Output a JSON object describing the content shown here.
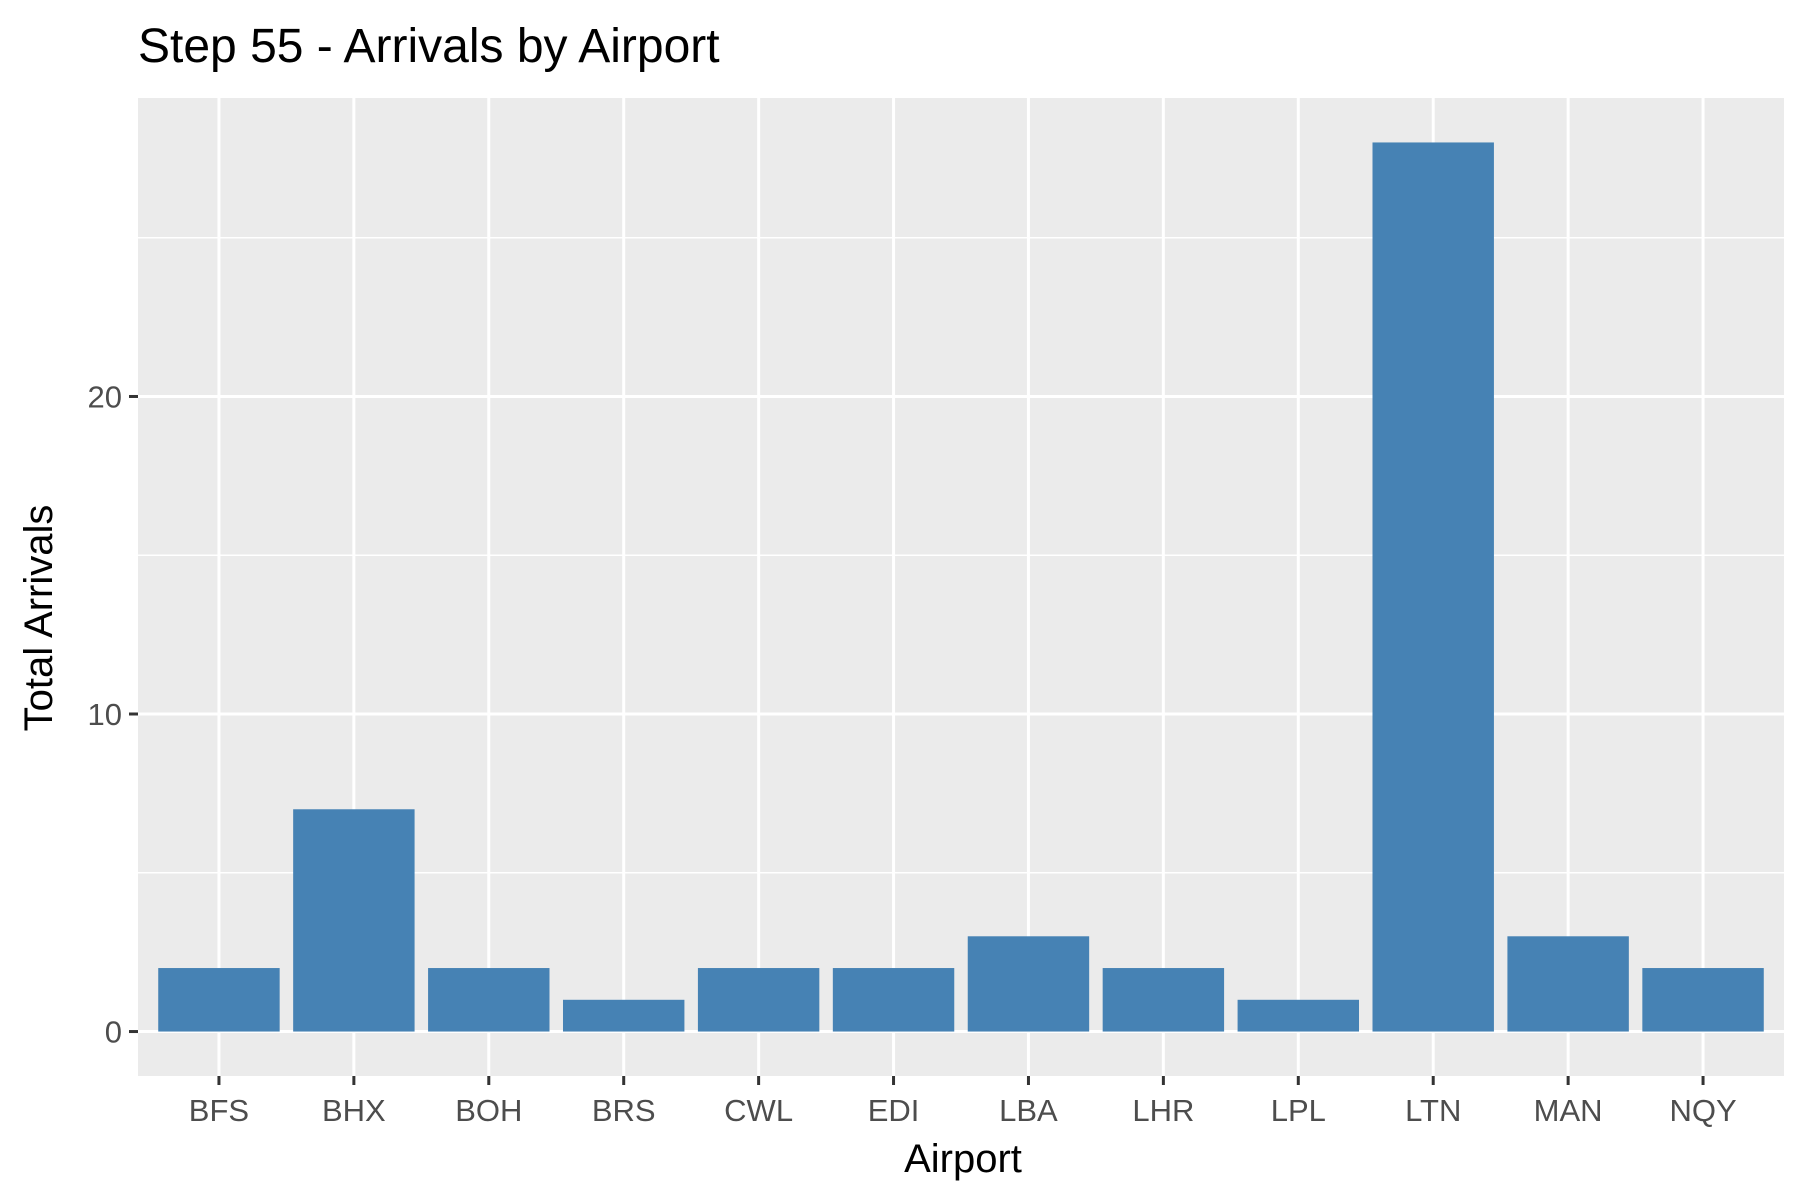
{
  "chart_data": {
    "type": "bar",
    "title": "Step 55 - Arrivals by Airport",
    "xlabel": "Airport",
    "ylabel": "Total Arrivals",
    "categories": [
      "BFS",
      "BHX",
      "BOH",
      "BRS",
      "CWL",
      "EDI",
      "LBA",
      "LHR",
      "LPL",
      "LTN",
      "MAN",
      "NQY"
    ],
    "values": [
      2,
      7,
      2,
      1,
      2,
      2,
      3,
      2,
      1,
      28,
      3,
      2
    ],
    "ylim": [
      -1.4,
      29.4
    ],
    "yticks": [
      0,
      10,
      20
    ],
    "grid": true,
    "bar_color": "#4682B4",
    "panel_color": "#EBEBEB",
    "grid_color": "#FFFFFF"
  }
}
